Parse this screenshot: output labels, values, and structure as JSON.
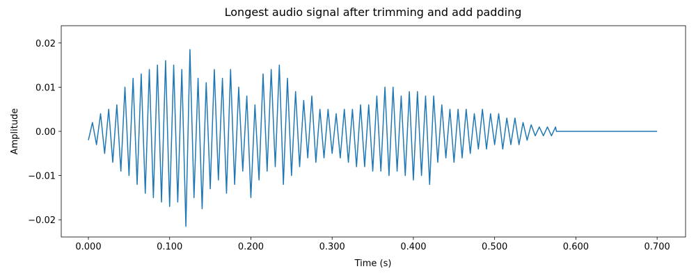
{
  "chart_data": {
    "type": "line",
    "title": "Longest audio signal after trimming and add padding",
    "xlabel": "Time (s)",
    "ylabel": "Amplitude",
    "color": "#1f77b4",
    "grid": false,
    "xlim": [
      -0.0334,
      0.735
    ],
    "ylim": [
      -0.0239,
      0.0239
    ],
    "xticks": [
      {
        "value": 0,
        "label": "0.000"
      },
      {
        "value": 0.1,
        "label": "0.100"
      },
      {
        "value": 0.2,
        "label": "0.200"
      },
      {
        "value": 0.3,
        "label": "0.300"
      },
      {
        "value": 0.4,
        "label": "0.400"
      },
      {
        "value": 0.5,
        "label": "0.500"
      },
      {
        "value": 0.6,
        "label": "0.600"
      },
      {
        "value": 0.7,
        "label": "0.700"
      }
    ],
    "yticks": [
      {
        "value": -0.02,
        "label": "−0.02"
      },
      {
        "value": -0.01,
        "label": "−0.01"
      },
      {
        "value": 0,
        "label": "0.00"
      },
      0.01,
      0.02
    ],
    "x": [
      0,
      0.005,
      0.01,
      0.015,
      0.02,
      0.025,
      0.03,
      0.035,
      0.04,
      0.045,
      0.05,
      0.055,
      0.06,
      0.065,
      0.07,
      0.075,
      0.08,
      0.085,
      0.09,
      0.095,
      0.1,
      0.105,
      0.11,
      0.115,
      0.12,
      0.125,
      0.13,
      0.135,
      0.14,
      0.145,
      0.15,
      0.155,
      0.16,
      0.165,
      0.17,
      0.175,
      0.18,
      0.185,
      0.19,
      0.195,
      0.2,
      0.205,
      0.21,
      0.215,
      0.22,
      0.225,
      0.23,
      0.235,
      0.24,
      0.245,
      0.25,
      0.255,
      0.26,
      0.265,
      0.27,
      0.275,
      0.28,
      0.285,
      0.29,
      0.295,
      0.3,
      0.305,
      0.31,
      0.315,
      0.32,
      0.325,
      0.33,
      0.335,
      0.34,
      0.345,
      0.35,
      0.355,
      0.36,
      0.365,
      0.37,
      0.375,
      0.38,
      0.385,
      0.39,
      0.395,
      0.4,
      0.405,
      0.41,
      0.415,
      0.42,
      0.425,
      0.43,
      0.435,
      0.44,
      0.445,
      0.45,
      0.455,
      0.46,
      0.465,
      0.47,
      0.475,
      0.48,
      0.485,
      0.49,
      0.495,
      0.5,
      0.505,
      0.51,
      0.515,
      0.52,
      0.525,
      0.53,
      0.535,
      0.54,
      0.545,
      0.55,
      0.555,
      0.56,
      0.565,
      0.57,
      0.575,
      0.576,
      0.7
    ],
    "values": [
      -0.002,
      0.002,
      -0.003,
      0.004,
      -0.005,
      0.005,
      -0.007,
      0.006,
      -0.009,
      0.01,
      -0.01,
      0.012,
      -0.012,
      0.013,
      -0.014,
      0.014,
      -0.015,
      0.015,
      -0.016,
      0.016,
      -0.017,
      0.015,
      -0.016,
      0.014,
      -0.0215,
      0.0185,
      -0.015,
      0.012,
      -0.0175,
      0.011,
      -0.013,
      0.014,
      -0.011,
      0.012,
      -0.014,
      0.014,
      -0.012,
      0.01,
      -0.009,
      0.008,
      -0.015,
      0.006,
      -0.011,
      0.013,
      -0.009,
      0.014,
      -0.008,
      0.015,
      -0.012,
      0.012,
      -0.01,
      0.009,
      -0.008,
      0.007,
      -0.006,
      0.008,
      -0.007,
      0.005,
      -0.006,
      0.005,
      -0.005,
      0.004,
      -0.006,
      0.005,
      -0.007,
      0.005,
      -0.008,
      0.006,
      -0.008,
      0.006,
      -0.009,
      0.008,
      -0.009,
      0.01,
      -0.01,
      0.01,
      -0.009,
      0.008,
      -0.01,
      0.009,
      -0.011,
      0.009,
      -0.01,
      0.008,
      -0.012,
      0.008,
      -0.007,
      0.006,
      -0.006,
      0.005,
      -0.007,
      0.005,
      -0.006,
      0.005,
      -0.005,
      0.004,
      -0.004,
      0.005,
      -0.004,
      0.004,
      -0.003,
      0.004,
      -0.004,
      0.003,
      -0.003,
      0.003,
      -0.003,
      0.002,
      -0.002,
      0.0015,
      -0.001,
      0.001,
      -0.001,
      0.001,
      -0.001,
      0.001,
      0,
      0
    ]
  }
}
